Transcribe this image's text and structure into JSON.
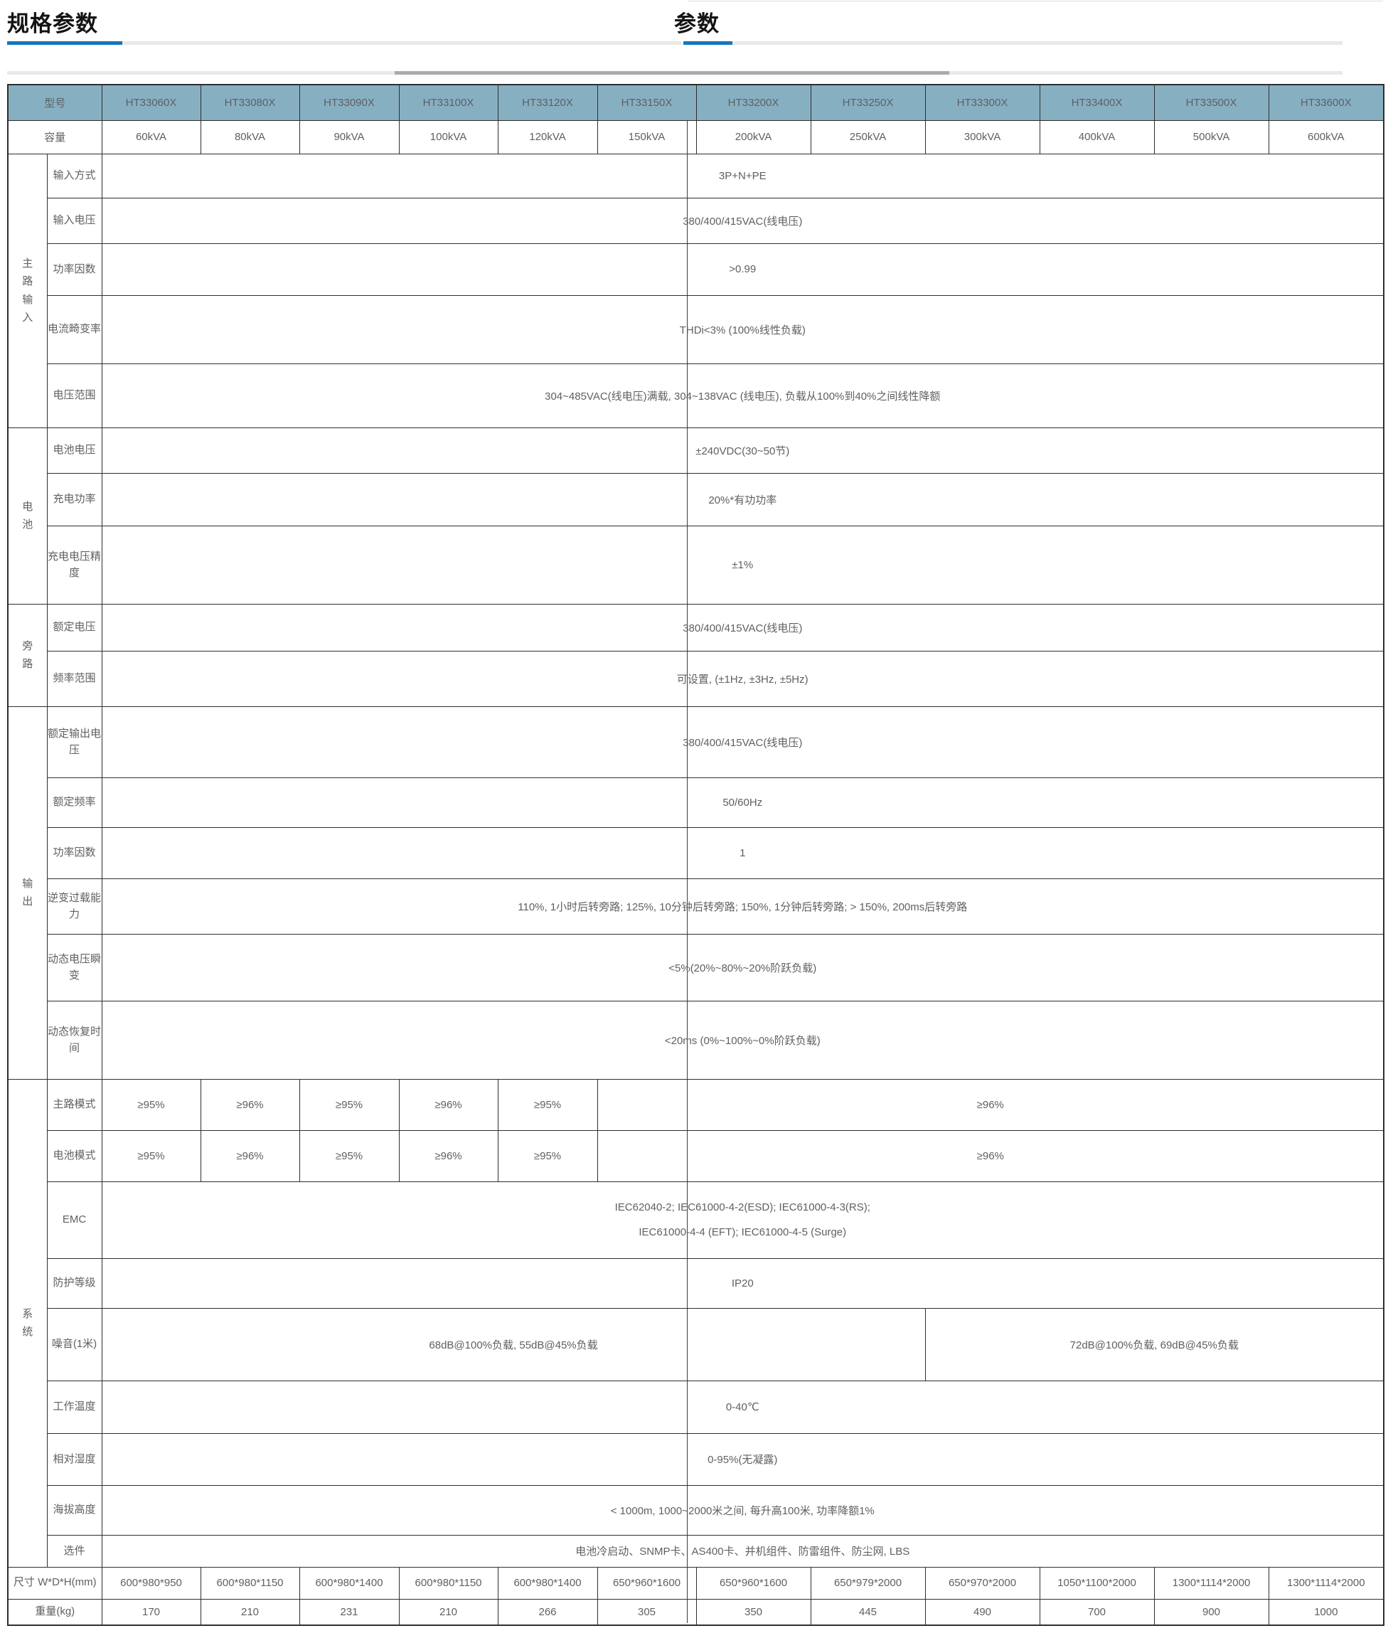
{
  "page": {
    "title": "规格参数",
    "title_partial": "参数"
  },
  "theme": {
    "accent": "#1377bd",
    "hdrbg": "#87afc2",
    "line": "#2e2e2e",
    "text": "#5d6063",
    "track": "#e9e9e9",
    "thumb": "#ababab"
  },
  "table": {
    "model_label": "型号",
    "capacity_label": "容量",
    "models": [
      "HT33060X",
      "HT33080X",
      "HT33090X",
      "HT33100X",
      "HT33120X",
      "HT33150X",
      "HT33200X",
      "HT33250X",
      "HT33300X",
      "HT33400X",
      "HT33500X",
      "HT33600X"
    ],
    "capacities": [
      "60kVA",
      "80kVA",
      "90kVA",
      "100kVA",
      "120kVA",
      "150kVA",
      "200kVA",
      "250kVA",
      "300kVA",
      "400kVA",
      "500kVA",
      "600kVA"
    ],
    "groups": [
      {
        "name": "主路输入",
        "rows": [
          {
            "label": "输入方式",
            "cells": [
              {
                "span": 12,
                "value": "3P+N+PE"
              }
            ]
          },
          {
            "label": "输入电压",
            "cells": [
              {
                "span": 12,
                "value": "380/400/415VAC(线电压)"
              }
            ]
          },
          {
            "label": "功率因数",
            "cells": [
              {
                "span": 12,
                "value": ">0.99"
              }
            ]
          },
          {
            "label": "电流畸变率",
            "cells": [
              {
                "span": 12,
                "value": "THDi<3% (100%线性负载)"
              }
            ]
          },
          {
            "label": "电压范围",
            "cells": [
              {
                "span": 12,
                "value": "304~485VAC(线电压)满载, 304~138VAC (线电压), 负载从100%到40%之间线性降额"
              }
            ]
          }
        ]
      },
      {
        "name": "电池",
        "rows": [
          {
            "label": "电池电压",
            "cells": [
              {
                "span": 12,
                "value": "±240VDC(30~50节)"
              }
            ]
          },
          {
            "label": "充电功率",
            "cells": [
              {
                "span": 12,
                "value": "20%*有功功率"
              }
            ]
          },
          {
            "label": "充电电压精度",
            "cells": [
              {
                "span": 12,
                "value": "±1%"
              }
            ]
          }
        ]
      },
      {
        "name": "旁路",
        "rows": [
          {
            "label": "额定电压",
            "cells": [
              {
                "span": 12,
                "value": "380/400/415VAC(线电压)"
              }
            ]
          },
          {
            "label": "频率范围",
            "cells": [
              {
                "span": 12,
                "value": "可设置, (±1Hz, ±3Hz, ±5Hz)"
              }
            ]
          }
        ]
      },
      {
        "name": "输出",
        "rows": [
          {
            "label": "额定输出电压",
            "cells": [
              {
                "span": 12,
                "value": "380/400/415VAC(线电压)"
              }
            ]
          },
          {
            "label": "额定频率",
            "cells": [
              {
                "span": 12,
                "value": "50/60Hz"
              }
            ]
          },
          {
            "label": "功率因数",
            "cells": [
              {
                "span": 12,
                "value": "1"
              }
            ]
          },
          {
            "label": "逆变过载能力",
            "cells": [
              {
                "span": 12,
                "value": "110%, 1小时后转旁路; 125%, 10分钟后转旁路; 150%, 1分钟后转旁路; > 150%, 200ms后转旁路"
              }
            ]
          },
          {
            "label": "动态电压瞬变",
            "cells": [
              {
                "span": 12,
                "value": "<5%(20%~80%~20%阶跃负载)"
              }
            ]
          },
          {
            "label": "动态恢复时间",
            "cells": [
              {
                "span": 12,
                "value": "<20ms (0%~100%~0%阶跃负载)"
              }
            ]
          }
        ]
      },
      {
        "name": "系统",
        "rows": [
          {
            "label": "主路模式",
            "cells": [
              {
                "span": 1,
                "value": "≥95%"
              },
              {
                "span": 1,
                "value": "≥96%"
              },
              {
                "span": 1,
                "value": "≥95%"
              },
              {
                "span": 1,
                "value": "≥96%"
              },
              {
                "span": 1,
                "value": "≥95%"
              },
              {
                "span": 7,
                "value": "≥96%"
              }
            ]
          },
          {
            "label": "电池模式",
            "cells": [
              {
                "span": 1,
                "value": "≥95%"
              },
              {
                "span": 1,
                "value": "≥96%"
              },
              {
                "span": 1,
                "value": "≥95%"
              },
              {
                "span": 1,
                "value": "≥96%"
              },
              {
                "span": 1,
                "value": "≥95%"
              },
              {
                "span": 7,
                "value": "≥96%"
              }
            ]
          },
          {
            "label": "EMC",
            "cells": [
              {
                "span": 12,
                "lines": [
                  "IEC62040-2;  IEC61000-4-2(ESD);  IEC61000-4-3(RS);",
                  "IEC61000-4-4 (EFT);  IEC61000-4-5 (Surge)"
                ]
              }
            ]
          },
          {
            "label": "防护等级",
            "cells": [
              {
                "span": 12,
                "value": "IP20"
              }
            ]
          },
          {
            "label": "噪音(1米)",
            "cells": [
              {
                "span": 8,
                "value": "68dB@100%负载, 55dB@45%负载"
              },
              {
                "span": 4,
                "value": "72dB@100%负载, 69dB@45%负载"
              }
            ]
          },
          {
            "label": "工作温度",
            "cells": [
              {
                "span": 12,
                "value": "0-40℃"
              }
            ]
          },
          {
            "label": "相对湿度",
            "cells": [
              {
                "span": 12,
                "value": "0-95%(无凝露)"
              }
            ]
          },
          {
            "label": "海拔高度",
            "cells": [
              {
                "span": 12,
                "value": "< 1000m, 1000~2000米之间, 每升高100米, 功率降额1%"
              }
            ]
          },
          {
            "label": "选件",
            "cells": [
              {
                "span": 12,
                "value": "电池冷启动、SNMP卡、AS400卡、并机组件、防雷组件、防尘网, LBS"
              }
            ]
          }
        ]
      }
    ],
    "footer_rows": [
      {
        "label": "尺寸 W*D*H(mm)",
        "cells": [
          "600*980*950",
          "600*980*1150",
          "600*980*1400",
          "600*980*1150",
          "600*980*1400",
          "650*960*1600",
          "650*960*1600",
          "650*979*2000",
          "650*970*2000",
          "1050*1100*2000",
          "1300*1114*2000",
          "1300*1114*2000"
        ]
      },
      {
        "label": "重量(kg)",
        "cells": [
          "170",
          "210",
          "231",
          "210",
          "266",
          "305",
          "350",
          "445",
          "490",
          "700",
          "900",
          "1000"
        ]
      }
    ]
  }
}
